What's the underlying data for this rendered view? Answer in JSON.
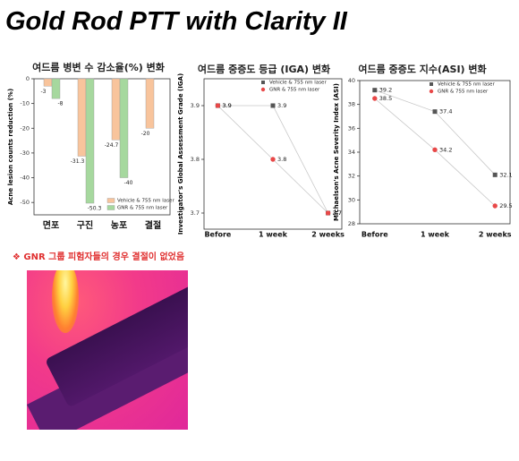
{
  "title": "Gold Rod PTT with Clarity II",
  "note": "❖ GNR 그룹 피험자들의 경우 결절이 없었음",
  "chart_data": [
    {
      "type": "bar",
      "title": "여드름 병변 수 감소율(%) 변화",
      "y_label": "Acne lesion counts reduction (%)",
      "categories": [
        "면포",
        "구진",
        "농포",
        "결절"
      ],
      "series": [
        {
          "name": "Vehicle & 755 nm laser",
          "color": "#f8c49c",
          "values": [
            -3,
            -31.3,
            -24.7,
            -20
          ]
        },
        {
          "name": "GNR & 755 nm laser",
          "color": "#a6d89e",
          "values": [
            -8,
            -50.3,
            -40,
            null
          ]
        }
      ],
      "ylim": [
        -55,
        0
      ],
      "yticks": [
        0,
        -10,
        -20,
        -30,
        -40,
        -50
      ],
      "legend": "lower right"
    },
    {
      "type": "line",
      "title": "여드름 중증도 등급 (IGA) 변화",
      "y_label": "Investigator's Global Assessment Grade (IGA)",
      "categories": [
        "Before",
        "1 week",
        "2 weeks"
      ],
      "series": [
        {
          "name": "Vehicle & 755 nm laser",
          "color": "#555555",
          "marker": "square",
          "values": [
            3.9,
            3.9,
            3.7
          ]
        },
        {
          "name": "GNR & 755 nm laser",
          "color": "#e84848",
          "marker": "circle",
          "values": [
            3.9,
            3.8,
            3.7
          ]
        }
      ],
      "ylim": [
        3.67,
        3.95
      ],
      "yticks": [
        3.7,
        3.8,
        3.9
      ],
      "legend": "upper right"
    },
    {
      "type": "line",
      "title": "여드름 중증도 지수(ASI) 변화",
      "y_label": "Michaelson's Acne Severity Index (ASI)",
      "categories": [
        "Before",
        "1 week",
        "2 weeks"
      ],
      "series": [
        {
          "name": "Vehicle & 755 nm laser",
          "color": "#555555",
          "marker": "square",
          "values": [
            39.2,
            37.4,
            32.1
          ]
        },
        {
          "name": "GNR & 755 nm laser",
          "color": "#e84848",
          "marker": "circle",
          "values": [
            38.5,
            34.2,
            29.5
          ]
        }
      ],
      "ylim": [
        28,
        40
      ],
      "yticks": [
        28,
        30,
        32,
        34,
        36,
        38,
        40
      ],
      "legend": "upper right"
    }
  ]
}
